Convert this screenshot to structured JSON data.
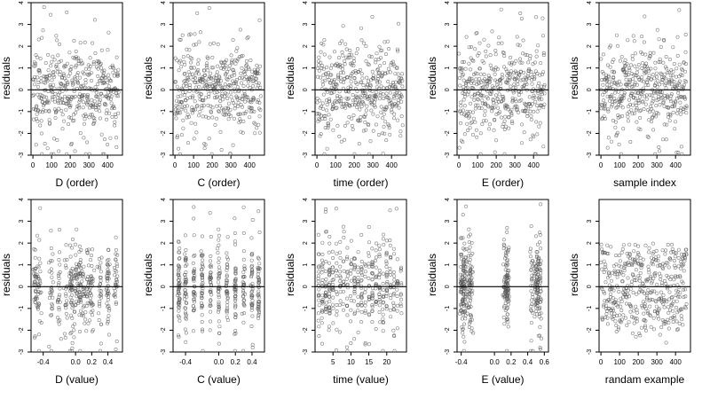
{
  "ylabel": "residuals",
  "chart_data": [
    {
      "type": "scatter",
      "id": "d-order",
      "xlabel": "D (order)",
      "xticks": [
        0,
        100,
        200,
        300,
        400
      ],
      "xlim": [
        -10,
        480
      ],
      "ylim": [
        -3,
        4
      ],
      "yticks": [
        -3,
        -2,
        -1,
        0,
        1,
        2,
        3,
        4
      ],
      "hline": 0,
      "pattern": "index",
      "seed": 11
    },
    {
      "type": "scatter",
      "id": "c-order",
      "xlabel": "C (order)",
      "xticks": [
        0,
        100,
        200,
        300,
        400
      ],
      "xlim": [
        -10,
        480
      ],
      "ylim": [
        -3,
        4
      ],
      "yticks": [
        -3,
        -2,
        -1,
        0,
        1,
        2,
        3,
        4
      ],
      "hline": 0,
      "pattern": "index",
      "seed": 23
    },
    {
      "type": "scatter",
      "id": "time-order",
      "xlabel": "time (order)",
      "xticks": [
        0,
        100,
        200,
        300,
        400
      ],
      "xlim": [
        -10,
        480
      ],
      "ylim": [
        -3,
        4
      ],
      "yticks": [
        -3,
        -2,
        -1,
        0,
        1,
        2,
        3,
        4
      ],
      "hline": 0,
      "pattern": "index",
      "seed": 37
    },
    {
      "type": "scatter",
      "id": "e-order",
      "xlabel": "E (order)",
      "xticks": [
        0,
        100,
        200,
        300,
        400
      ],
      "xlim": [
        -10,
        480
      ],
      "ylim": [
        -3,
        4
      ],
      "yticks": [
        -3,
        -2,
        -1,
        0,
        1,
        2,
        3,
        4
      ],
      "hline": 0,
      "pattern": "index",
      "seed": 41
    },
    {
      "type": "scatter",
      "id": "sample-index",
      "xlabel": "sample index",
      "xticks": [
        0,
        100,
        200,
        300,
        400
      ],
      "xlim": [
        -10,
        480
      ],
      "ylim": [
        -3,
        4
      ],
      "yticks": [
        -3,
        -2,
        -1,
        0,
        1,
        2,
        3,
        4
      ],
      "hline": 0,
      "pattern": "index",
      "seed": 53
    },
    {
      "type": "scatter",
      "id": "d-value",
      "xlabel": "D (value)",
      "xticks": [
        -0.4,
        0.0,
        0.2,
        0.4
      ],
      "xtick_labels": [
        "-0.4",
        "0.0",
        "0.2",
        "0.4"
      ],
      "xlim": [
        -0.55,
        0.58
      ],
      "ylim": [
        -3,
        4
      ],
      "yticks": [
        -3,
        -2,
        -1,
        0,
        1,
        2,
        3,
        4
      ],
      "hline": 0,
      "pattern": "clustered",
      "clusters": [
        -0.5,
        -0.45,
        -0.3,
        -0.2,
        -0.12,
        -0.05,
        0.0,
        0.05,
        0.1,
        0.15,
        0.2,
        0.3,
        0.4,
        0.5
      ],
      "spread": 0.012,
      "seed": 61
    },
    {
      "type": "scatter",
      "id": "c-value",
      "xlabel": "C (value)",
      "xticks": [
        -0.4,
        0.0,
        0.2,
        0.4
      ],
      "xtick_labels": [
        "-0.4",
        "0.0",
        "0.2",
        "0.4"
      ],
      "xlim": [
        -0.55,
        0.55
      ],
      "ylim": [
        -3,
        4
      ],
      "yticks": [
        -3,
        -2,
        -1,
        0,
        1,
        2,
        3,
        4
      ],
      "hline": 0,
      "pattern": "clustered",
      "clusters": [
        -0.48,
        -0.4,
        -0.3,
        -0.2,
        -0.1,
        0.0,
        0.1,
        0.2,
        0.3,
        0.4,
        0.48
      ],
      "spread": 0.006,
      "seed": 71
    },
    {
      "type": "scatter",
      "id": "time-value",
      "xlabel": "time (value)",
      "xticks": [
        5,
        10,
        15,
        20
      ],
      "xtick_labels": [
        "5",
        "10",
        "15",
        "20"
      ],
      "xlim": [
        0,
        25.5
      ],
      "ylim": [
        -3,
        4
      ],
      "yticks": [
        -3,
        -2,
        -1,
        0,
        1,
        2,
        3,
        4
      ],
      "hline": 0,
      "pattern": "clustered",
      "clusters": [
        1,
        2,
        3,
        4,
        5,
        6,
        7,
        8,
        9,
        10,
        11,
        12,
        13,
        14,
        15,
        16,
        17,
        18,
        19,
        20,
        21,
        22,
        23,
        24
      ],
      "spread": 0.08,
      "seed": 83
    },
    {
      "type": "scatter",
      "id": "e-value",
      "xlabel": "E (value)",
      "xticks": [
        -0.4,
        0.0,
        0.2,
        0.4,
        0.6
      ],
      "xtick_labels": [
        "-0.4",
        "0.0",
        "0.2",
        "0.4",
        "0.6"
      ],
      "xlim": [
        -0.45,
        0.65
      ],
      "ylim": [
        -3,
        4
      ],
      "yticks": [
        -3,
        -2,
        -1,
        0,
        1,
        2,
        3,
        4
      ],
      "hline": 0,
      "pattern": "clustered",
      "clusters": [
        -0.4,
        -0.38,
        -0.35,
        -0.3,
        -0.28,
        0.12,
        0.15,
        0.16,
        0.45,
        0.5,
        0.52,
        0.55
      ],
      "spread": 0.01,
      "seed": 97
    },
    {
      "type": "scatter",
      "id": "random-example",
      "xlabel": "randam example",
      "xticks": [
        0,
        100,
        200,
        300,
        400
      ],
      "xlim": [
        -10,
        480
      ],
      "ylim": [
        -3,
        4
      ],
      "yticks": [
        -3,
        -2,
        -1,
        0,
        1,
        2,
        3
      ],
      "hline": 0,
      "pattern": "uniform",
      "seed": 101
    }
  ]
}
